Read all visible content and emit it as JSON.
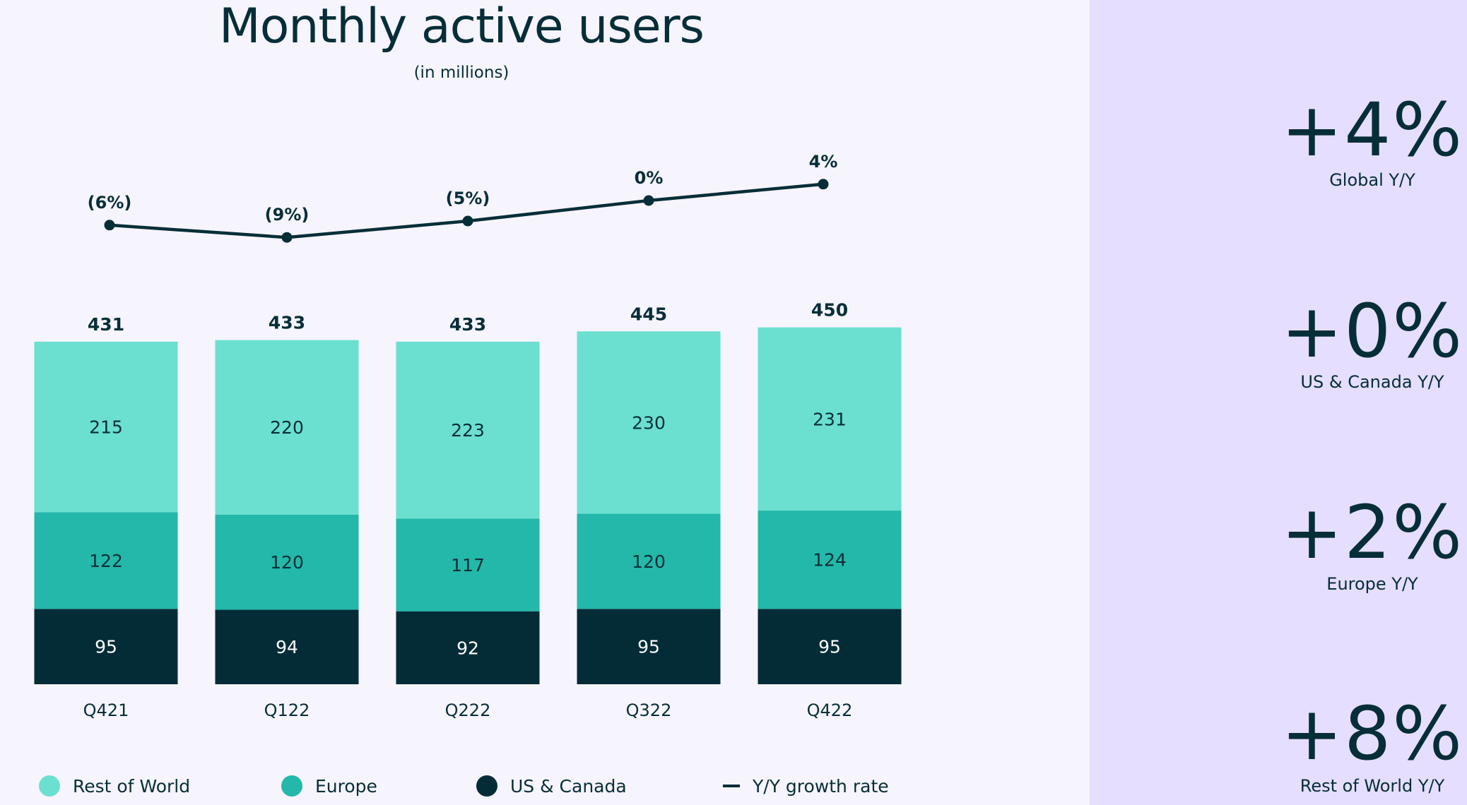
{
  "chart_data": {
    "type": "bar",
    "stacked": true,
    "title": "Monthly active users",
    "subtitle": "(in millions)",
    "categories": [
      "Q421",
      "Q122",
      "Q222",
      "Q322",
      "Q422"
    ],
    "series": [
      {
        "name": "US & Canada",
        "color": "#032c37",
        "values": [
          95,
          94,
          92,
          95,
          95
        ]
      },
      {
        "name": "Europe",
        "color": "#23b8a9",
        "values": [
          122,
          120,
          117,
          120,
          124
        ]
      },
      {
        "name": "Rest of World",
        "color": "#6bdfd0",
        "values": [
          215,
          220,
          223,
          230,
          231
        ]
      }
    ],
    "totals": [
      431,
      433,
      433,
      445,
      450
    ],
    "line_series": {
      "name": "Y/Y growth rate",
      "color": "#062e38",
      "values": [
        -6,
        -9,
        -5,
        0,
        4
      ],
      "labels": [
        "(6%)",
        "(9%)",
        "(5%)",
        "0%",
        "4%"
      ]
    },
    "legend": [
      "Rest of World",
      "Europe",
      "US & Canada",
      "Y/Y growth rate"
    ],
    "legend_placement": "bottom",
    "grid": false
  },
  "side_panel": {
    "stats": [
      {
        "value": "+4%",
        "label": "Global Y/Y"
      },
      {
        "value": "+0%",
        "label": "US & Canada Y/Y"
      },
      {
        "value": "+2%",
        "label": "Europe Y/Y"
      },
      {
        "value": "+8%",
        "label": "Rest of World Y/Y"
      }
    ]
  }
}
